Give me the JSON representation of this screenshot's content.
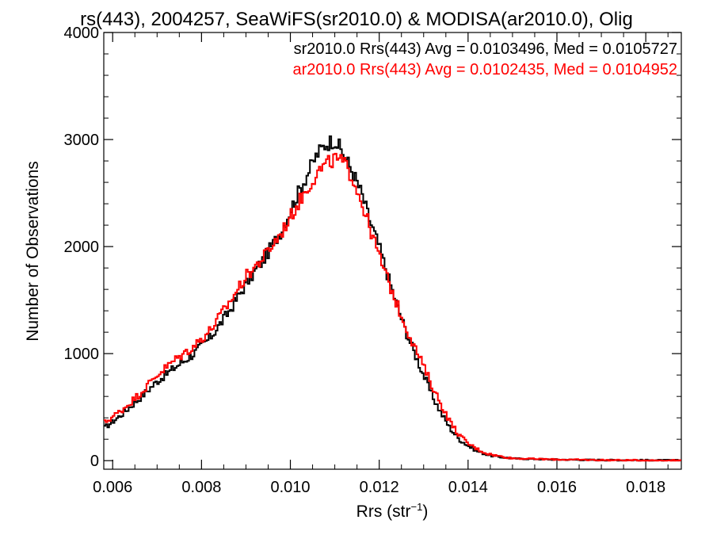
{
  "chart_data": {
    "type": "line",
    "title": "rs(443), 2004257, SeaWiFS(sr2010.0) & MODISA(ar2010.0), Olig",
    "xlabel": "Rrs (str",
    "xlabel_sup": "−1",
    "xlabel_close": ")",
    "ylabel": "Number of Observations",
    "xlim": [
      0.0058,
      0.0188
    ],
    "ylim": [
      -80,
      4000
    ],
    "x_ticks": [
      0.006,
      0.008,
      0.01,
      0.012,
      0.014,
      0.016,
      0.018
    ],
    "x_tick_labels": [
      "0.006",
      "0.008",
      "0.010",
      "0.012",
      "0.014",
      "0.016",
      "0.018"
    ],
    "y_ticks": [
      0,
      1000,
      2000,
      3000,
      4000
    ],
    "y_tick_labels": [
      "0",
      "1000",
      "2000",
      "3000",
      "4000"
    ],
    "step_style": "histogram",
    "x": [
      0.0058,
      0.0062,
      0.0066,
      0.007,
      0.0074,
      0.0078,
      0.0082,
      0.0086,
      0.009,
      0.0094,
      0.0098,
      0.0102,
      0.0106,
      0.0108,
      0.011,
      0.0112,
      0.0114,
      0.0116,
      0.0118,
      0.012,
      0.0122,
      0.0124,
      0.0126,
      0.0128,
      0.013,
      0.0132,
      0.0134,
      0.0136,
      0.0138,
      0.014,
      0.0142,
      0.0144,
      0.0146,
      0.0148,
      0.015,
      0.0155,
      0.016,
      0.0165,
      0.017,
      0.0175,
      0.018,
      0.0188
    ],
    "series": [
      {
        "name": "sr2010.0 Rrs(443) Avg = 0.0103496, Med = 0.0105727",
        "color": "#000000",
        "values": [
          300,
          430,
          580,
          740,
          870,
          990,
          1150,
          1380,
          1650,
          1880,
          2150,
          2520,
          2860,
          2960,
          3000,
          2860,
          2700,
          2500,
          2230,
          2000,
          1720,
          1450,
          1210,
          1000,
          800,
          600,
          440,
          300,
          200,
          140,
          90,
          60,
          40,
          30,
          20,
          15,
          10,
          8,
          6,
          5,
          4,
          3
        ]
      },
      {
        "name": "ar2010.0 Rrs(443) Avg = 0.0102435, Med = 0.0104952",
        "color": "#ff0000",
        "values": [
          350,
          470,
          620,
          800,
          940,
          1060,
          1220,
          1460,
          1720,
          1900,
          2130,
          2420,
          2690,
          2760,
          2820,
          2780,
          2650,
          2420,
          2160,
          1910,
          1680,
          1460,
          1250,
          1060,
          880,
          690,
          520,
          360,
          240,
          160,
          110,
          70,
          50,
          35,
          22,
          16,
          11,
          8,
          6,
          4,
          3,
          2
        ]
      }
    ]
  }
}
